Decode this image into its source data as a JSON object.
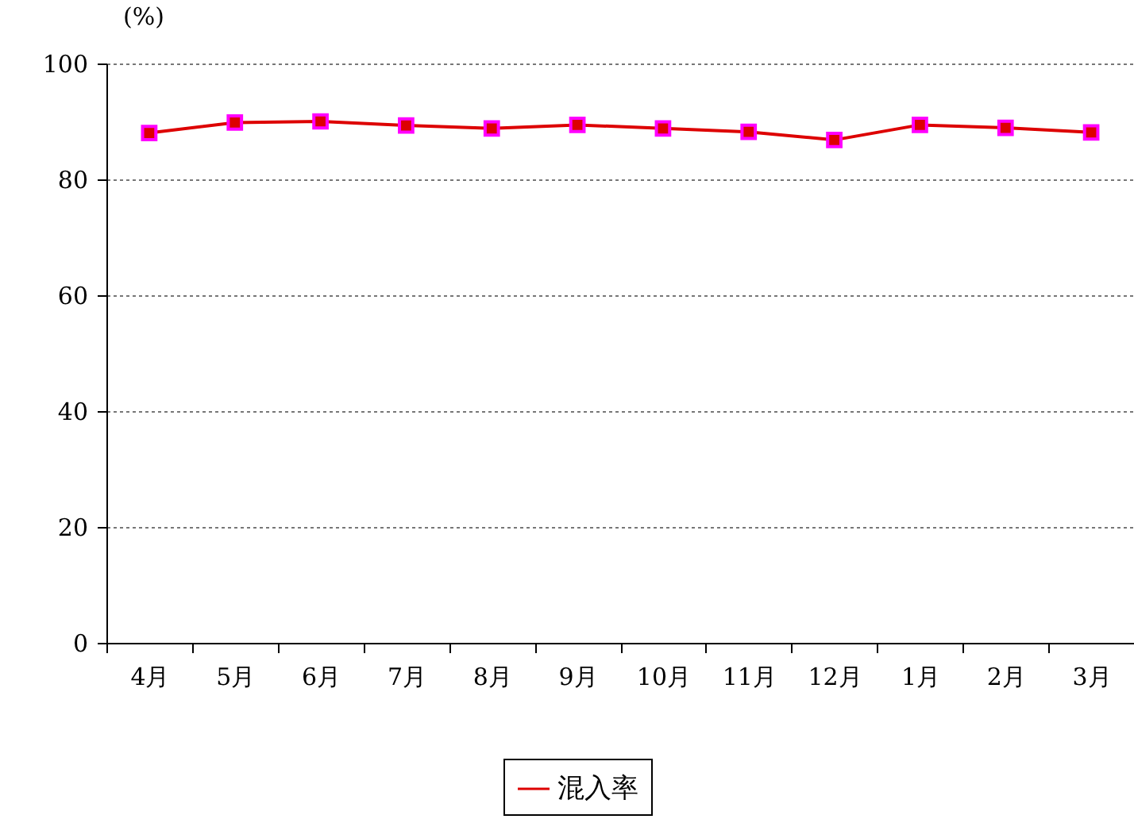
{
  "chart_data": {
    "type": "line",
    "ylabel": "(%)",
    "categories": [
      "4月",
      "5月",
      "6月",
      "7月",
      "8月",
      "9月",
      "10月",
      "11月",
      "12月",
      "1月",
      "2月",
      "3月"
    ],
    "series": [
      {
        "name": "混入率",
        "color": "#dd0000",
        "values": [
          88.0,
          89.8,
          90.0,
          89.3,
          88.8,
          89.4,
          88.8,
          88.2,
          86.8,
          89.4,
          88.9,
          88.1
        ]
      }
    ],
    "ylim": [
      0,
      100
    ],
    "yticks": [
      0,
      20,
      40,
      60,
      80,
      100
    ],
    "grid": "y",
    "legend": "bottom",
    "marker": "square",
    "line_style": "solid"
  }
}
